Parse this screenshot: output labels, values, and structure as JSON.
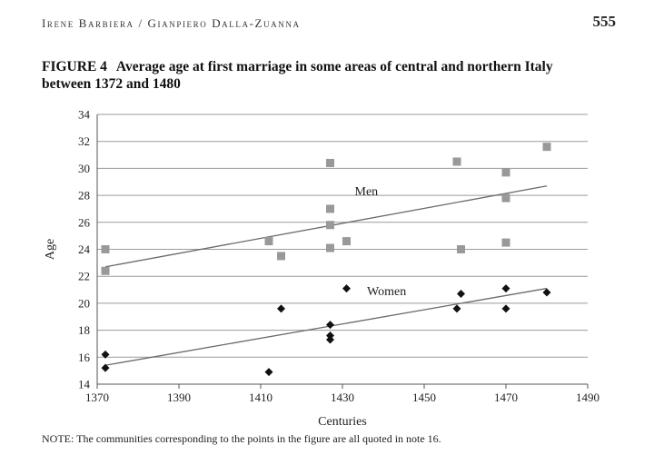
{
  "header": {
    "running_head": "Irene Barbiera / Gianpiero Dalla-Zuanna",
    "page_number": "555"
  },
  "figure": {
    "label": "FIGURE 4",
    "title": "Average age at first marriage in some areas of central and northern Italy between 1372 and 1480",
    "note": "NOTE: The communities corresponding to the points in the figure are all quoted in note 16."
  },
  "chart_data": {
    "type": "scatter",
    "xlabel": "Centuries",
    "ylabel": "Age",
    "xlim": [
      1370,
      1490
    ],
    "ylim": [
      14,
      34
    ],
    "x_ticks": [
      1370,
      1390,
      1410,
      1430,
      1450,
      1470,
      1490
    ],
    "y_ticks": [
      14,
      16,
      18,
      20,
      22,
      24,
      26,
      28,
      30,
      32,
      34
    ],
    "grid": "horizontal",
    "series": [
      {
        "name": "Men",
        "marker": "square",
        "color": "#999999",
        "points": [
          {
            "x": 1372,
            "y": 24.0
          },
          {
            "x": 1372,
            "y": 22.4
          },
          {
            "x": 1412,
            "y": 24.6
          },
          {
            "x": 1415,
            "y": 23.5
          },
          {
            "x": 1427,
            "y": 30.4
          },
          {
            "x": 1427,
            "y": 27.0
          },
          {
            "x": 1427,
            "y": 25.8
          },
          {
            "x": 1427,
            "y": 24.1
          },
          {
            "x": 1431,
            "y": 24.6
          },
          {
            "x": 1458,
            "y": 30.5
          },
          {
            "x": 1459,
            "y": 24.0
          },
          {
            "x": 1470,
            "y": 29.7
          },
          {
            "x": 1470,
            "y": 27.8
          },
          {
            "x": 1470,
            "y": 24.5
          },
          {
            "x": 1480,
            "y": 31.6
          }
        ],
        "trend": {
          "x": [
            1372,
            1480
          ],
          "y": [
            22.7,
            28.7
          ]
        }
      },
      {
        "name": "Women",
        "marker": "diamond",
        "color": "#111111",
        "points": [
          {
            "x": 1372,
            "y": 16.2
          },
          {
            "x": 1372,
            "y": 15.2
          },
          {
            "x": 1412,
            "y": 14.9
          },
          {
            "x": 1415,
            "y": 19.6
          },
          {
            "x": 1427,
            "y": 18.4
          },
          {
            "x": 1427,
            "y": 17.6
          },
          {
            "x": 1427,
            "y": 17.3
          },
          {
            "x": 1431,
            "y": 21.1
          },
          {
            "x": 1458,
            "y": 19.6
          },
          {
            "x": 1459,
            "y": 20.7
          },
          {
            "x": 1470,
            "y": 21.1
          },
          {
            "x": 1470,
            "y": 19.6
          },
          {
            "x": 1480,
            "y": 20.8
          }
        ],
        "trend": {
          "x": [
            1372,
            1480
          ],
          "y": [
            15.4,
            21.1
          ]
        }
      }
    ],
    "annotations": [
      {
        "text": "Men",
        "x": 1433,
        "y": 28.0
      },
      {
        "text": "Women",
        "x": 1436,
        "y": 20.6
      }
    ]
  }
}
